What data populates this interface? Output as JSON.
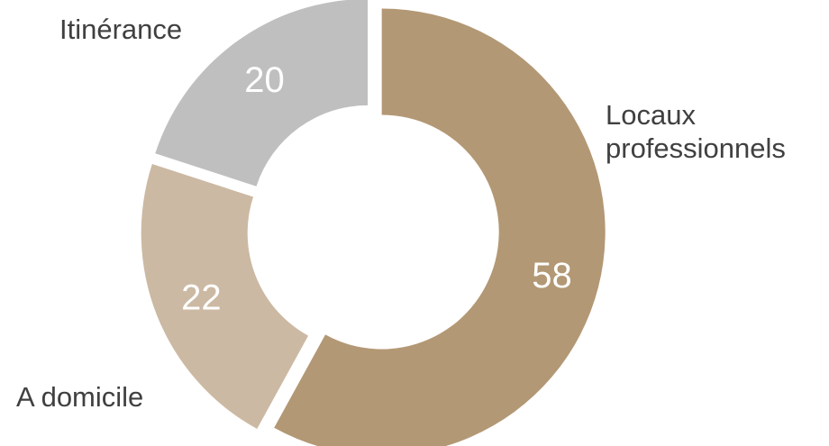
{
  "chart_data": {
    "type": "pie",
    "subtype": "donut",
    "title": "",
    "categories": [
      "Locaux professionnels",
      "A domicile",
      "Itinérance"
    ],
    "values": [
      58,
      22,
      20
    ],
    "colors": [
      "#b39875",
      "#ccb9a3",
      "#bfbfbf"
    ],
    "data_labels": [
      "58",
      "22",
      "20"
    ],
    "category_labels": [
      [
        "Locaux",
        "professionnels"
      ],
      [
        "A domicile"
      ],
      [
        "Itinérance"
      ]
    ],
    "legend": "none",
    "exploded": true
  }
}
